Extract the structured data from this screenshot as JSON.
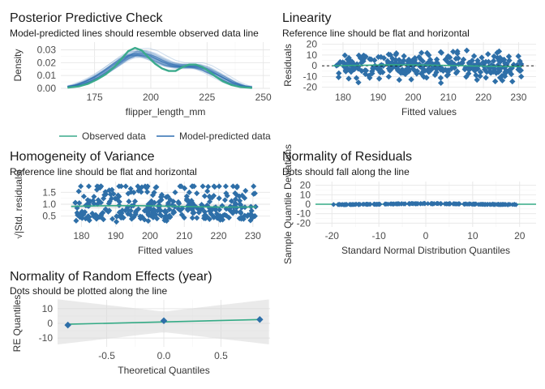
{
  "colors": {
    "observed": "#3aaa8c",
    "model": "#2e6fb0",
    "dots": "#2e6fa8",
    "reference": "#35ab86",
    "band": "#d9d9d9",
    "grid": "#e6e6e6"
  },
  "chart_data": [
    {
      "id": "ppc",
      "type": "line",
      "title": "Posterior Predictive Check",
      "subtitle": "Model-predicted lines should resemble observed data line",
      "xlabel": "flipper_length_mm",
      "ylabel": "Density",
      "xlim": [
        160,
        253
      ],
      "ylim": [
        0,
        0.036
      ],
      "xticks": [
        175,
        200,
        225,
        250
      ],
      "yticks": [
        0,
        0.01,
        0.02,
        0.03
      ],
      "ytick_labels": [
        "0.00",
        "0.01",
        "0.02",
        "0.03"
      ],
      "grid": true,
      "legend_position": "bottom",
      "series": [
        {
          "name": "Observed data",
          "x": [
            163,
            168,
            172,
            176,
            180,
            184,
            187,
            190,
            193,
            196,
            199,
            202,
            205,
            208,
            211,
            214,
            217,
            220,
            223,
            226,
            229,
            232,
            236,
            240,
            245
          ],
          "y": [
            0.0005,
            0.0015,
            0.0035,
            0.0068,
            0.011,
            0.017,
            0.023,
            0.029,
            0.0315,
            0.0295,
            0.024,
            0.019,
            0.0155,
            0.0135,
            0.0135,
            0.0165,
            0.0185,
            0.0185,
            0.0165,
            0.013,
            0.009,
            0.0055,
            0.0025,
            0.001,
            0.0003
          ]
        },
        {
          "name": "Model-predicted data",
          "x": [
            163,
            168,
            172,
            176,
            180,
            184,
            188,
            192,
            196,
            200,
            204,
            208,
            212,
            216,
            220,
            224,
            228,
            232,
            236,
            240,
            245
          ],
          "y": [
            0.001,
            0.0028,
            0.0055,
            0.009,
            0.0135,
            0.0185,
            0.0235,
            0.027,
            0.0275,
            0.0255,
            0.022,
            0.019,
            0.0175,
            0.0175,
            0.0175,
            0.0155,
            0.012,
            0.0082,
            0.0045,
            0.002,
            0.0007
          ]
        }
      ]
    },
    {
      "id": "linearity",
      "type": "scatter",
      "title": "Linearity",
      "subtitle": "Reference line should be flat and horizontal",
      "xlabel": "Fitted values",
      "ylabel": "Residuals",
      "xlim": [
        174,
        235
      ],
      "ylim": [
        -21,
        22
      ],
      "xticks": [
        180,
        190,
        200,
        210,
        220,
        230
      ],
      "yticks": [
        -20,
        -10,
        0,
        10,
        20
      ],
      "grid": true
    },
    {
      "id": "homogeneity",
      "type": "scatter",
      "title": "Homogeneity of Variance",
      "subtitle": "Reference line should be flat and horizontal",
      "xlabel": "Fitted values",
      "ylabel": "√|Std. residuals|",
      "xlim": [
        174,
        235
      ],
      "ylim": [
        0.05,
        1.95
      ],
      "xticks": [
        180,
        190,
        200,
        210,
        220,
        230
      ],
      "yticks": [
        0.5,
        1.0,
        1.5
      ],
      "ytick_labels": [
        "0.5",
        "1.0",
        "1.5"
      ],
      "grid": true
    },
    {
      "id": "normality",
      "type": "scatter",
      "title": "Normality of Residuals",
      "subtitle": "Dots should fall along the line",
      "xlabel": "Standard Normal Distribution Quantiles",
      "ylabel": "Sample Quantile Deviations",
      "xlim": [
        -23.5,
        23.5
      ],
      "ylim": [
        -24,
        24
      ],
      "xticks": [
        -20,
        -10,
        0,
        10,
        20
      ],
      "yticks": [
        -20,
        -10,
        0,
        10,
        20
      ],
      "grid": true
    },
    {
      "id": "random",
      "type": "scatter",
      "title": "Normality of Random Effects (year)",
      "subtitle": "Dots should be plotted along the line",
      "xlabel": "Theoretical Quantiles",
      "ylabel": "RE Quantiles",
      "xlim": [
        -0.93,
        0.93
      ],
      "ylim": [
        -16,
        16
      ],
      "xticks": [
        -0.5,
        0,
        0.5
      ],
      "xtick_labels": [
        "-0.5",
        "0.0",
        "0.5"
      ],
      "yticks": [
        -10,
        0,
        10
      ],
      "grid": true,
      "points": {
        "x": [
          -0.84,
          0,
          0.84
        ],
        "y": [
          -1.2,
          1.8,
          2.6
        ]
      }
    }
  ]
}
